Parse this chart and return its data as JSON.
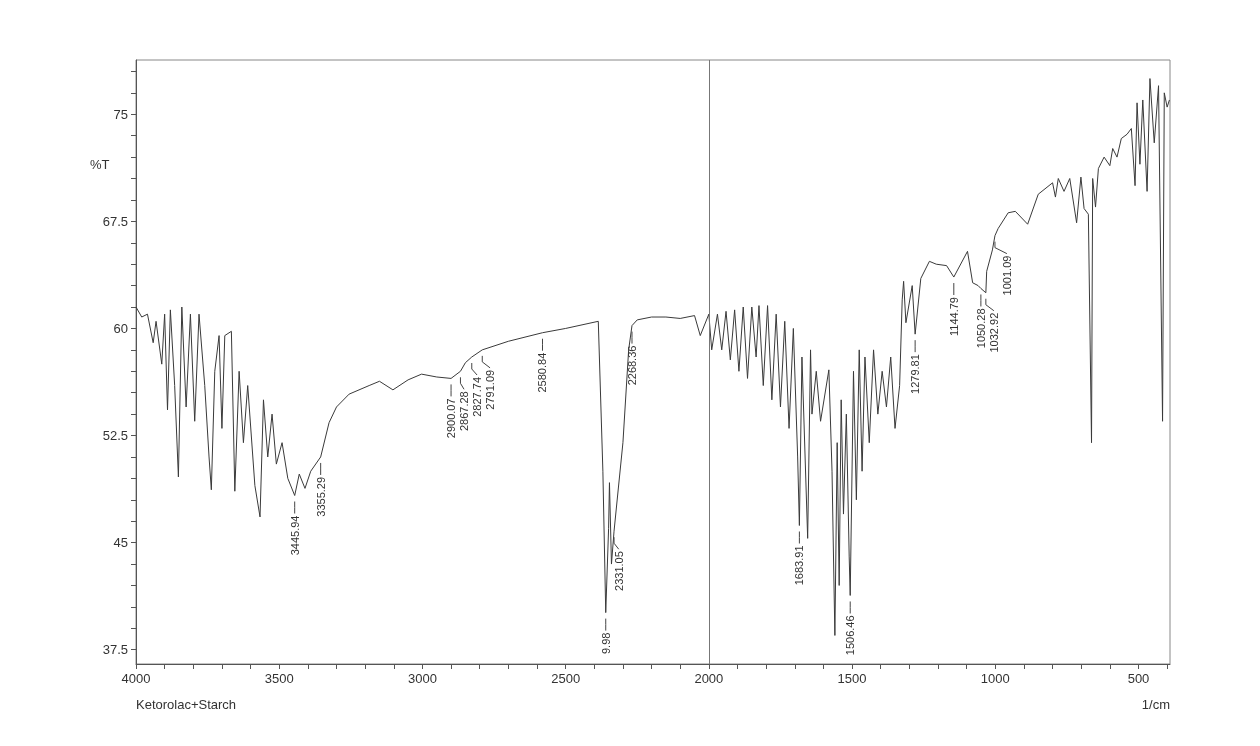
{
  "chart_data": {
    "type": "line",
    "title": "Ketorolac+Starch",
    "xlabel": "1/cm",
    "ylabel": "%T",
    "xlim": [
      4000,
      390
    ],
    "ylim": [
      36.5,
      78.8
    ],
    "xticks": [
      4000,
      {
        "value": 3900,
        "label": null
      },
      {
        "value": 3800,
        "label": null
      },
      {
        "value": 3700,
        "label": null
      },
      {
        "value": 3600,
        "label": null
      },
      3500,
      {
        "value": 3400,
        "label": null
      },
      {
        "value": 3300,
        "label": null
      },
      {
        "value": 3200,
        "label": null
      },
      {
        "value": 3100,
        "label": null
      },
      3000,
      {
        "value": 2900,
        "label": null
      },
      {
        "value": 2800,
        "label": null
      },
      {
        "value": 2700,
        "label": null
      },
      {
        "value": 2600,
        "label": null
      },
      2500,
      {
        "value": 2400,
        "label": null
      },
      {
        "value": 2300,
        "label": null
      },
      {
        "value": 2200,
        "label": null
      },
      {
        "value": 2100,
        "label": null
      },
      2000,
      {
        "value": 1900,
        "label": null
      },
      {
        "value": 1800,
        "label": null
      },
      {
        "value": 1700,
        "label": null
      },
      {
        "value": 1600,
        "label": null
      },
      1500,
      {
        "value": 1400,
        "label": null
      },
      {
        "value": 1300,
        "label": null
      },
      {
        "value": 1200,
        "label": null
      },
      {
        "value": 1100,
        "label": null
      },
      1000,
      {
        "value": 900,
        "label": null
      },
      {
        "value": 800,
        "label": null
      },
      {
        "value": 700,
        "label": null
      },
      {
        "value": 600,
        "label": null
      },
      500,
      {
        "value": 400,
        "label": null
      }
    ],
    "yticks": [
      37.5,
      {
        "value": 39,
        "label": null
      },
      {
        "value": 40.5,
        "label": null
      },
      {
        "value": 42,
        "label": null
      },
      {
        "value": 43.5,
        "label": null
      },
      45,
      {
        "value": 46.5,
        "label": null
      },
      {
        "value": 48,
        "label": null
      },
      {
        "value": 49.5,
        "label": null
      },
      {
        "value": 51,
        "label": null
      },
      52.5,
      {
        "value": 54,
        "label": null
      },
      {
        "value": 55.5,
        "label": null
      },
      {
        "value": 57,
        "label": null
      },
      {
        "value": 58.5,
        "label": null
      },
      60,
      {
        "value": 61.5,
        "label": null
      },
      {
        "value": 63,
        "label": null
      },
      {
        "value": 64.5,
        "label": null
      },
      {
        "value": 66,
        "label": null
      },
      67.5,
      {
        "value": 69,
        "label": null
      },
      {
        "value": 70.5,
        "label": null
      },
      {
        "value": 72,
        "label": null
      },
      {
        "value": 73.5,
        "label": null
      },
      75,
      {
        "value": 76.5,
        "label": null
      },
      {
        "value": 78,
        "label": null
      }
    ],
    "marker": "none",
    "line_style": "solid",
    "series": [
      {
        "color": "#3a3a3a",
        "x": [
          4000,
          3980,
          3960,
          3940,
          3930,
          3910,
          3900,
          3890,
          3880,
          3865,
          3852,
          3840,
          3825,
          3810,
          3795,
          3780,
          3760,
          3745,
          3737,
          3725,
          3710,
          3700,
          3690,
          3667,
          3655,
          3640,
          3625,
          3610,
          3585,
          3567,
          3555,
          3540,
          3525,
          3510,
          3490,
          3470,
          3445.94,
          3430,
          3410,
          3390,
          3355.29,
          3326,
          3300,
          3256,
          3186,
          3150,
          3103,
          3050,
          3003,
          2950,
          2900.07,
          2867.28,
          2850,
          2827.74,
          2791.09,
          2700,
          2580.84,
          2500,
          2386,
          2370,
          2359.98,
          2350,
          2347,
          2340,
          2331.05,
          2300,
          2280,
          2268.36,
          2250,
          2200,
          2150,
          2100,
          2050,
          2030,
          2000,
          1990,
          1970,
          1955,
          1940,
          1925,
          1910,
          1895,
          1880,
          1865,
          1850,
          1835,
          1825,
          1810,
          1795,
          1780,
          1765,
          1750,
          1735,
          1720,
          1705,
          1690,
          1683.91,
          1675,
          1655,
          1645,
          1640,
          1625,
          1610,
          1581,
          1570,
          1560,
          1552,
          1545,
          1538,
          1530,
          1520,
          1510,
          1506.46,
          1495,
          1485,
          1475,
          1465,
          1455,
          1440,
          1425,
          1410,
          1395,
          1380,
          1365,
          1350,
          1334,
          1325,
          1320,
          1312,
          1290,
          1279.81,
          1260,
          1230,
          1206,
          1170,
          1144.79,
          1097,
          1079,
          1060,
          1050.28,
          1032.92,
          1030,
          1010,
          1001.09,
          990,
          955,
          930,
          887,
          850,
          800,
          790,
          780,
          760,
          740,
          716,
          701,
          690,
          675,
          664,
          660,
          650,
          640,
          620,
          600,
          590,
          575,
          560,
          540,
          525,
          512,
          505,
          495,
          485,
          470,
          460,
          445,
          430,
          416,
          410,
          400,
          392
        ],
        "values": [
          61.5,
          60.8,
          61.0,
          59.0,
          60.5,
          57.5,
          61.0,
          54.3,
          61.3,
          56.0,
          49.6,
          61.5,
          54.5,
          61.0,
          53.5,
          61.0,
          56.0,
          51.0,
          48.7,
          57.0,
          59.5,
          53.0,
          59.5,
          59.8,
          48.6,
          57.0,
          52.0,
          56.0,
          49.0,
          46.8,
          55.0,
          51.0,
          54.0,
          50.5,
          52.0,
          49.5,
          48.3,
          49.8,
          48.8,
          50.0,
          51.0,
          53.4,
          54.5,
          55.4,
          56.0,
          56.3,
          55.7,
          56.4,
          56.8,
          56.6,
          56.5,
          57.0,
          57.6,
          58.0,
          58.5,
          59.1,
          59.7,
          60.0,
          60.5,
          50.0,
          40.1,
          46.0,
          49.2,
          43.5,
          45.8,
          52.0,
          58.5,
          60.2,
          60.6,
          60.8,
          60.8,
          60.7,
          60.9,
          59.5,
          61.0,
          58.5,
          61.0,
          58.5,
          61.2,
          57.8,
          61.3,
          57.0,
          61.5,
          56.5,
          61.5,
          58.0,
          61.6,
          56.0,
          61.6,
          55.0,
          61.0,
          54.5,
          60.5,
          53.0,
          60.0,
          51.0,
          46.2,
          58.0,
          45.3,
          58.5,
          54.0,
          57.0,
          53.5,
          57.1,
          50.0,
          38.5,
          52.0,
          42.0,
          55.0,
          47.0,
          54.0,
          44.0,
          41.3,
          57.0,
          48.0,
          58.5,
          50.0,
          58.0,
          52.0,
          58.5,
          54.0,
          57.0,
          54.5,
          58.0,
          53.0,
          56.0,
          62.0,
          63.3,
          60.4,
          63.0,
          59.6,
          63.5,
          64.7,
          64.5,
          64.4,
          63.6,
          65.4,
          63.2,
          63.0,
          62.8,
          62.5,
          64.0,
          65.5,
          66.5,
          67.0,
          68.1,
          68.2,
          67.3,
          69.4,
          70.2,
          69.2,
          70.5,
          69.6,
          70.5,
          67.4,
          70.6,
          68.4,
          68.0,
          52.0,
          70.5,
          68.5,
          71.2,
          72.0,
          71.4,
          72.6,
          72.0,
          73.3,
          73.6,
          74.0,
          70.0,
          75.8,
          71.5,
          76.0,
          69.6,
          77.5,
          73.0,
          77.0,
          53.5,
          76.5,
          75.5,
          76.0
        ]
      }
    ],
    "ref_lines": [
      {
        "axis": "x",
        "value": 2000,
        "color": "#777777"
      }
    ],
    "annotations": [
      {
        "text": "3445.94",
        "x": 3445.94,
        "y": 48.3
      },
      {
        "text": "3355.29",
        "x": 3355.29,
        "y": 51.0
      },
      {
        "text": "2900.07",
        "x": 2900.07,
        "y": 56.5
      },
      {
        "text": "2867.28",
        "x": 2867.28,
        "y": 57.0
      },
      {
        "text": "2827.74",
        "x": 2827.74,
        "y": 58.0
      },
      {
        "text": "2791.09",
        "x": 2791.09,
        "y": 58.5
      },
      {
        "text": "2580.84",
        "x": 2580.84,
        "y": 59.7
      },
      {
        "text": "9.98",
        "x": 2359.98,
        "y": 40.1
      },
      {
        "text": "2331.05",
        "x": 2331.05,
        "y": 45.8
      },
      {
        "text": "2268.36",
        "x": 2268.36,
        "y": 60.2
      },
      {
        "text": "1683.91",
        "x": 1683.91,
        "y": 46.2
      },
      {
        "text": "1506.46",
        "x": 1506.46,
        "y": 41.3
      },
      {
        "text": "1279.81",
        "x": 1279.81,
        "y": 59.6
      },
      {
        "text": "1144.79",
        "x": 1144.79,
        "y": 63.6
      },
      {
        "text": "1050.28",
        "x": 1050.28,
        "y": 62.8
      },
      {
        "text": "1032.92",
        "x": 1032.92,
        "y": 62.5
      },
      {
        "text": "1001.09",
        "x": 1001.09,
        "y": 66.5
      }
    ]
  }
}
